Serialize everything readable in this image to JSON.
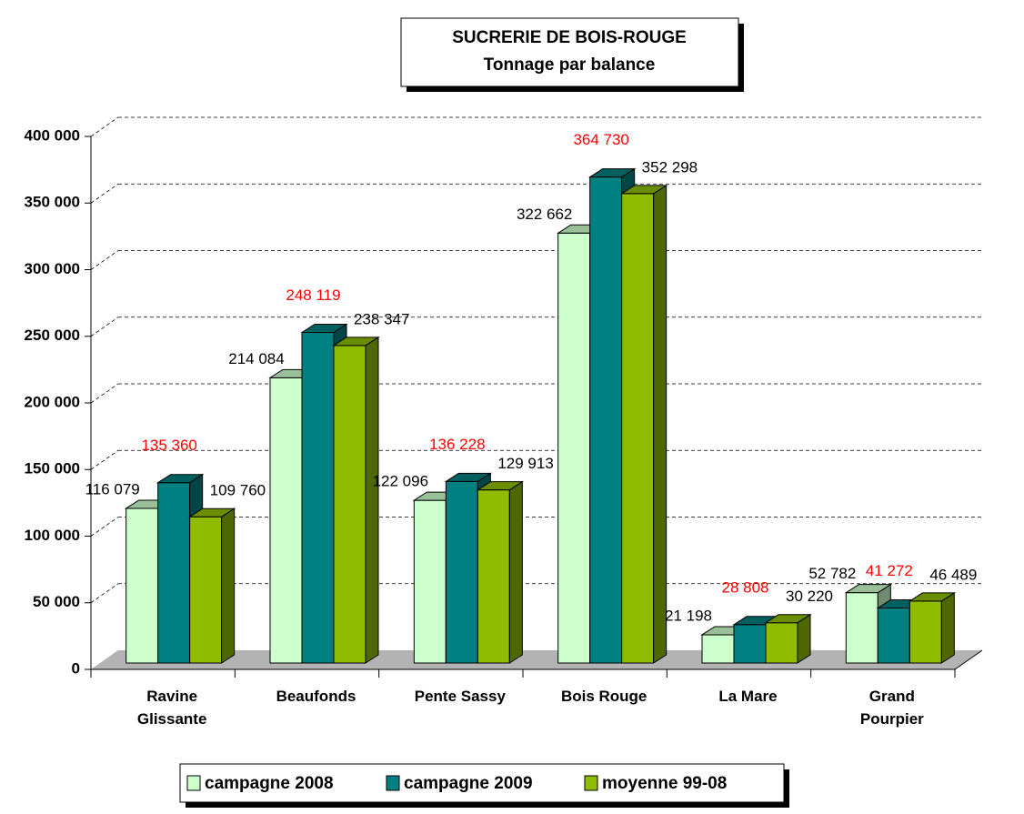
{
  "chart_data": {
    "type": "bar3d",
    "title": "SUCRERIE DE BOIS-ROUGE",
    "subtitle": "Tonnage par balance",
    "categories": [
      "Ravine\nGlissante",
      "Beaufonds",
      "Pente Sassy",
      "Bois Rouge",
      "La Mare",
      "Grand\nPourpier"
    ],
    "series": [
      {
        "name": "campagne 2008",
        "color": "#ccffcc",
        "label_color": "#000000",
        "values": [
          116079,
          214084,
          122096,
          322662,
          21198,
          52782
        ],
        "value_labels": [
          "116 079",
          "214 084",
          "122 096",
          "322 662",
          "21 198",
          "52 782"
        ]
      },
      {
        "name": "campagne 2009",
        "color": "#008080",
        "label_color": "#ff0000",
        "values": [
          135360,
          248119,
          136228,
          364730,
          28808,
          41272
        ],
        "value_labels": [
          "135 360",
          "248 119",
          "136 228",
          "364 730",
          "28 808",
          "41 272"
        ]
      },
      {
        "name": "moyenne 99-08",
        "color": "#8fbc00",
        "label_color": "#000000",
        "values": [
          109760,
          238347,
          129913,
          352298,
          30220,
          46489
        ],
        "value_labels": [
          "109 760",
          "238 347",
          "129 913",
          "352 298",
          "30 220",
          "46 489"
        ]
      }
    ],
    "ylim": [
      0,
      400000
    ],
    "yticks": [
      0,
      {
        "value": 50000,
        "label": "50 000"
      },
      {
        "value": 100000,
        "label": "100 000"
      },
      {
        "value": 150000,
        "label": "150 000"
      },
      {
        "value": 200000,
        "label": "200 000"
      },
      {
        "value": 250000,
        "label": "250 000"
      },
      {
        "value": 300000,
        "label": "300 000"
      },
      {
        "value": 350000,
        "label": "350 000"
      },
      {
        "value": 400000,
        "label": "400 000"
      }
    ],
    "grid": true,
    "legend": "bottom"
  }
}
